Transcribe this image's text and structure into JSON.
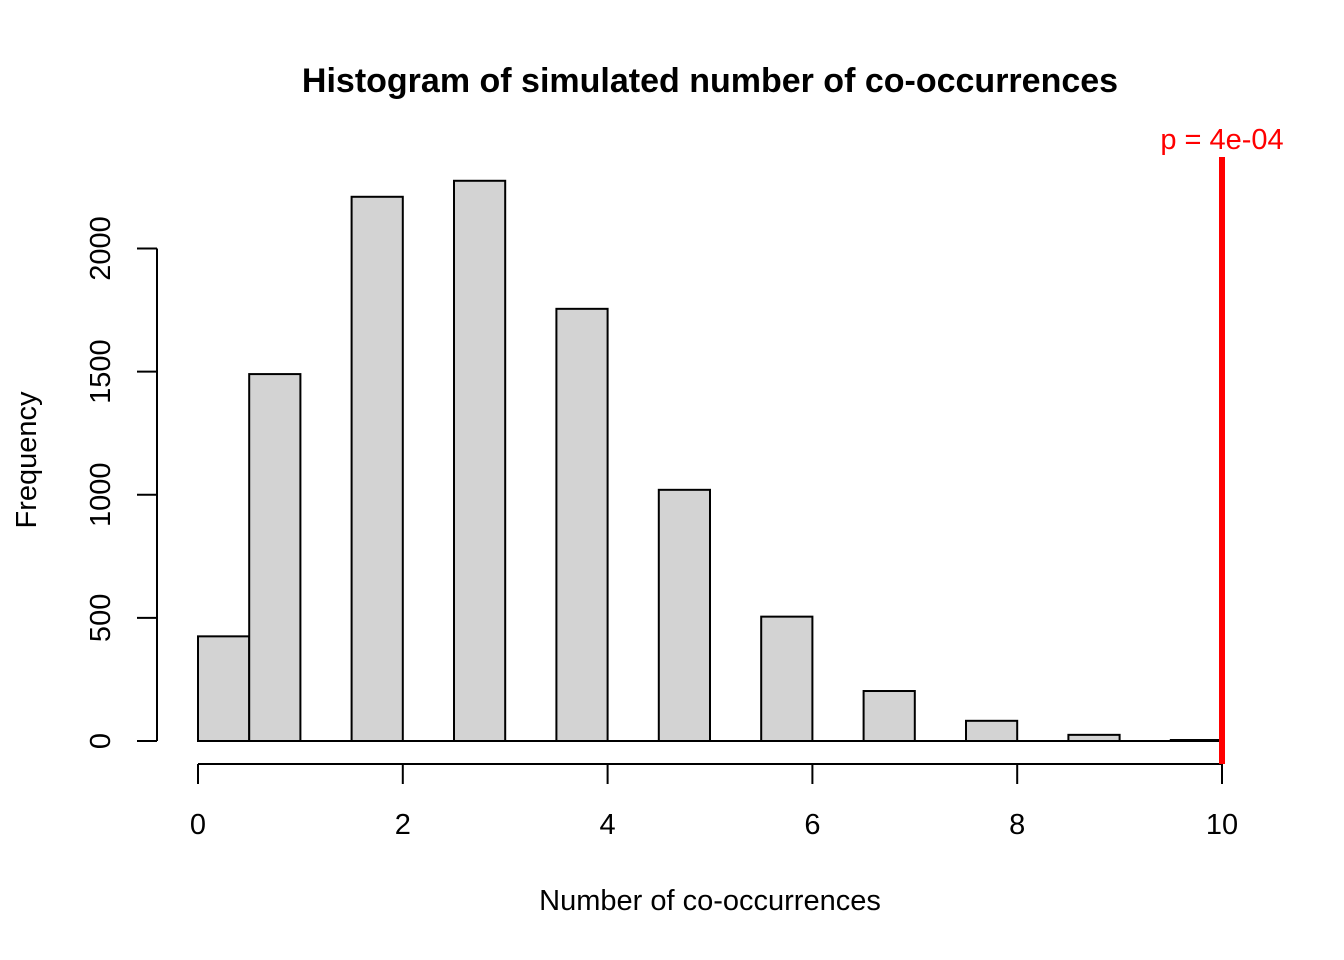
{
  "chart_data": {
    "type": "bar",
    "title": "Histogram of simulated number of co-occurrences",
    "xlabel": "Number of co-occurrences",
    "ylabel": "Frequency",
    "bins": [
      {
        "x0": 0.0,
        "x1": 0.5,
        "count": 425
      },
      {
        "x0": 0.5,
        "x1": 1.0,
        "count": 1490
      },
      {
        "x0": 1.5,
        "x1": 2.0,
        "count": 2210
      },
      {
        "x0": 2.5,
        "x1": 3.0,
        "count": 2275
      },
      {
        "x0": 3.5,
        "x1": 4.0,
        "count": 1755
      },
      {
        "x0": 4.5,
        "x1": 5.0,
        "count": 1020
      },
      {
        "x0": 5.5,
        "x1": 6.0,
        "count": 505
      },
      {
        "x0": 6.5,
        "x1": 7.0,
        "count": 203
      },
      {
        "x0": 7.5,
        "x1": 8.0,
        "count": 82
      },
      {
        "x0": 8.5,
        "x1": 9.0,
        "count": 25
      },
      {
        "x0": 9.5,
        "x1": 10.0,
        "count": 4
      }
    ],
    "xlim": [
      0,
      10
    ],
    "ylim": [
      0,
      2300
    ],
    "x_ticks": [
      0,
      2,
      4,
      6,
      8,
      10
    ],
    "y_ticks": [
      0,
      500,
      1000,
      1500,
      2000
    ],
    "bar_color": "#d3d3d3",
    "grid": false,
    "observed_line": {
      "x": 10,
      "color": "#ff0000",
      "label": "p = 4e-04"
    }
  }
}
